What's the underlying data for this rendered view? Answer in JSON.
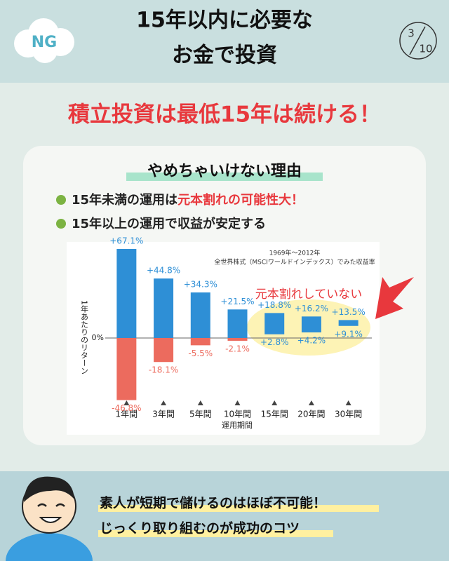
{
  "header": {
    "badge": "NG",
    "title": [
      "15年以内に必要な",
      "お金で投資"
    ],
    "page": "3",
    "total": "10"
  },
  "headline": "積立投資は最低15年は続ける！",
  "card": {
    "heading": "やめちゃいけない理由",
    "bullets": [
      {
        "text": "15年未満の運用は",
        "highlight": "元本割れの可能性大！"
      },
      {
        "text": "15年以上の運用で収益が安定する"
      }
    ]
  },
  "chart_data": {
    "type": "range_bar",
    "note": [
      "1969年～2012年",
      "全世界株式（MSCIワールドインデックス）でみた収益率"
    ],
    "y_label": "1年あたりのリターン",
    "x_label": "運用期間",
    "annotation": "元本割れしていない",
    "categories": [
      "1年間",
      "3年間",
      "5年間",
      "10年間",
      "15年間",
      "20年間",
      "30年間"
    ],
    "series": [
      {
        "color": "#2e8fd6",
        "values": [
          67.1,
          44.8,
          34.3,
          21.5,
          18.8,
          16.2,
          13.5
        ],
        "value_labels": [
          "+67.1%",
          "+44.8%",
          "+34.3%",
          "+21.5%",
          "+18.8%",
          "+16.2%",
          "+13.5%"
        ]
      },
      {
        "color": "#ec6b5e",
        "values": [
          -46.8,
          -18.1,
          -5.5,
          -2.1,
          2.8,
          4.2,
          9.1
        ],
        "value_labels": [
          "-46.8%",
          "-18.1%",
          "-5.5%",
          "-2.1%",
          "+2.8%",
          "+4.2%",
          "+9.1%"
        ]
      }
    ],
    "ylim": [
      -50,
      70
    ],
    "yticks": [
      {
        "value": 0,
        "label": "0%"
      }
    ]
  },
  "footer": [
    "素人が短期で儲けるのはほぼ不可能！",
    "じっくり取り組むのが成功のコツ"
  ]
}
